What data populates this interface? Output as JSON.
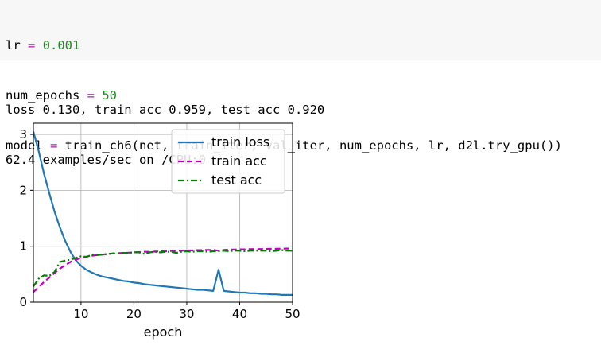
{
  "code_cell": {
    "lines": [
      [
        {
          "t": "lr ",
          "c": ""
        },
        {
          "t": "=",
          "c": "op"
        },
        {
          "t": " ",
          "c": ""
        },
        {
          "t": "0.001",
          "c": "num"
        }
      ],
      [
        {
          "t": "num_epochs ",
          "c": ""
        },
        {
          "t": "=",
          "c": "op"
        },
        {
          "t": " ",
          "c": ""
        },
        {
          "t": "50",
          "c": "num"
        }
      ],
      [
        {
          "t": "model ",
          "c": ""
        },
        {
          "t": "=",
          "c": "op"
        },
        {
          "t": " train_ch6(net, train_iter, val_iter, num_epochs, lr, d2l.try_gpu())",
          "c": ""
        }
      ]
    ]
  },
  "output": {
    "lines": [
      "loss 0.130, train acc 0.959, test acc 0.920",
      "62.4 examples/sec on /CPU:0"
    ]
  },
  "chart_data": {
    "type": "line",
    "xlabel": "epoch",
    "ylabel": "",
    "xlim": [
      1,
      50
    ],
    "ylim": [
      0,
      3.2
    ],
    "xticks": [
      10,
      20,
      30,
      40,
      50
    ],
    "yticks": [
      0,
      1,
      2,
      3
    ],
    "grid": true,
    "legend_position": "top-right",
    "series": [
      {
        "name": "train loss",
        "color": "#1f77b4",
        "style": "solid",
        "x": [
          1,
          2,
          3,
          4,
          5,
          6,
          7,
          8,
          9,
          10,
          11,
          12,
          13,
          14,
          15,
          16,
          17,
          18,
          19,
          20,
          21,
          22,
          23,
          24,
          25,
          26,
          27,
          28,
          29,
          30,
          31,
          32,
          33,
          34,
          35,
          36,
          37,
          38,
          39,
          40,
          41,
          42,
          43,
          44,
          45,
          46,
          47,
          48,
          49,
          50
        ],
        "y": [
          3.05,
          2.7,
          2.3,
          1.95,
          1.62,
          1.34,
          1.1,
          0.9,
          0.75,
          0.65,
          0.58,
          0.53,
          0.49,
          0.46,
          0.44,
          0.42,
          0.4,
          0.38,
          0.37,
          0.35,
          0.34,
          0.32,
          0.31,
          0.3,
          0.29,
          0.28,
          0.27,
          0.26,
          0.25,
          0.24,
          0.23,
          0.22,
          0.22,
          0.21,
          0.2,
          0.58,
          0.2,
          0.19,
          0.18,
          0.17,
          0.17,
          0.16,
          0.16,
          0.15,
          0.15,
          0.14,
          0.14,
          0.13,
          0.13,
          0.13
        ]
      },
      {
        "name": "train acc",
        "color": "#bf00bf",
        "style": "dashed",
        "x": [
          1,
          2,
          3,
          4,
          5,
          6,
          7,
          8,
          9,
          10,
          11,
          12,
          13,
          14,
          15,
          16,
          17,
          18,
          19,
          20,
          21,
          22,
          23,
          24,
          25,
          26,
          27,
          28,
          29,
          30,
          31,
          32,
          33,
          34,
          35,
          36,
          37,
          38,
          39,
          40,
          41,
          42,
          43,
          44,
          45,
          46,
          47,
          48,
          49,
          50
        ],
        "y": [
          0.18,
          0.27,
          0.36,
          0.44,
          0.52,
          0.6,
          0.66,
          0.72,
          0.76,
          0.79,
          0.81,
          0.83,
          0.84,
          0.85,
          0.86,
          0.87,
          0.875,
          0.88,
          0.885,
          0.89,
          0.895,
          0.9,
          0.9,
          0.905,
          0.91,
          0.91,
          0.915,
          0.92,
          0.92,
          0.925,
          0.925,
          0.93,
          0.93,
          0.935,
          0.935,
          0.92,
          0.935,
          0.94,
          0.94,
          0.945,
          0.945,
          0.948,
          0.95,
          0.95,
          0.952,
          0.954,
          0.955,
          0.957,
          0.958,
          0.959
        ]
      },
      {
        "name": "test acc",
        "color": "#008000",
        "style": "dashdot",
        "x": [
          1,
          2,
          3,
          4,
          5,
          6,
          7,
          8,
          9,
          10,
          11,
          12,
          13,
          14,
          15,
          16,
          17,
          18,
          19,
          20,
          21,
          22,
          23,
          24,
          25,
          26,
          27,
          28,
          29,
          30,
          31,
          32,
          33,
          34,
          35,
          36,
          37,
          38,
          39,
          40,
          41,
          42,
          43,
          44,
          45,
          46,
          47,
          48,
          49,
          50
        ],
        "y": [
          0.28,
          0.42,
          0.48,
          0.47,
          0.54,
          0.72,
          0.74,
          0.76,
          0.79,
          0.82,
          0.81,
          0.84,
          0.84,
          0.85,
          0.86,
          0.87,
          0.87,
          0.88,
          0.88,
          0.89,
          0.89,
          0.86,
          0.89,
          0.9,
          0.89,
          0.9,
          0.9,
          0.88,
          0.9,
          0.91,
          0.9,
          0.91,
          0.91,
          0.9,
          0.91,
          0.91,
          0.92,
          0.91,
          0.92,
          0.92,
          0.91,
          0.92,
          0.92,
          0.92,
          0.92,
          0.91,
          0.92,
          0.93,
          0.92,
          0.92
        ]
      }
    ]
  }
}
